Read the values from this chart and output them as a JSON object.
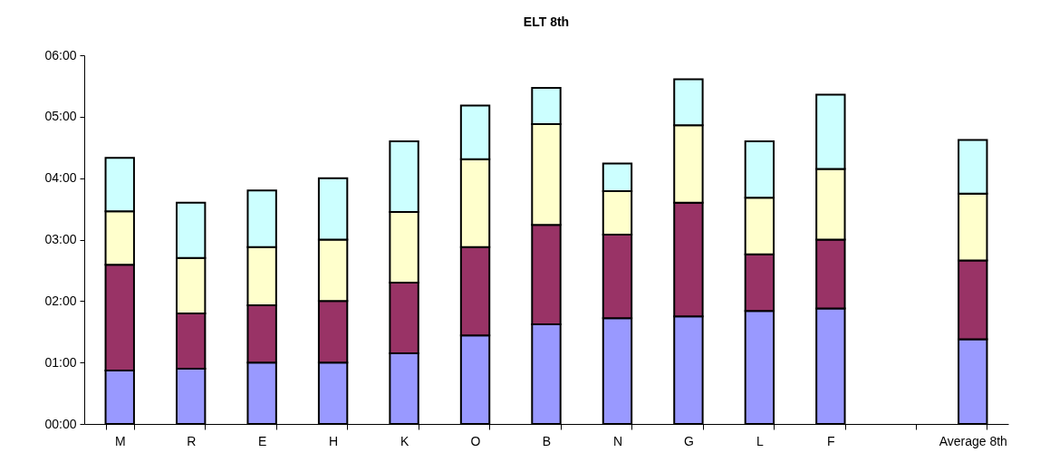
{
  "chart_data": {
    "type": "bar",
    "title": "ELT 8th",
    "stacked": true,
    "categories": [
      "M",
      "R",
      "E",
      "H",
      "K",
      "O",
      "B",
      "N",
      "G",
      "L",
      "F",
      null,
      "Average 8th"
    ],
    "series": [
      {
        "color": "#9999ff",
        "values": [
          0.87,
          0.9,
          1.0,
          1.0,
          1.15,
          1.44,
          1.62,
          1.72,
          1.75,
          1.84,
          1.88,
          null,
          1.38
        ]
      },
      {
        "color": "#993366",
        "values": [
          1.72,
          0.9,
          0.93,
          1.0,
          1.15,
          1.44,
          1.62,
          1.36,
          1.85,
          0.92,
          1.12,
          null,
          1.28
        ]
      },
      {
        "color": "#ffffcc",
        "values": [
          0.87,
          0.9,
          0.95,
          1.0,
          1.15,
          1.43,
          1.64,
          0.71,
          1.26,
          0.92,
          1.15,
          null,
          1.09
        ]
      },
      {
        "color": "#ccffff",
        "values": [
          0.87,
          0.9,
          0.92,
          1.0,
          1.15,
          0.87,
          0.59,
          0.45,
          0.75,
          0.92,
          1.21,
          null,
          0.87
        ]
      }
    ],
    "ylim": [
      0,
      6
    ],
    "yticks": [
      {
        "value": 0,
        "label": "00:00"
      },
      {
        "value": 1,
        "label": "01:00"
      },
      {
        "value": 2,
        "label": "02:00"
      },
      {
        "value": 3,
        "label": "03:00"
      },
      {
        "value": 4,
        "label": "04:00"
      },
      {
        "value": 5,
        "label": "05:00"
      },
      {
        "value": 6,
        "label": "06:00"
      }
    ],
    "grid": false,
    "legend": false
  }
}
